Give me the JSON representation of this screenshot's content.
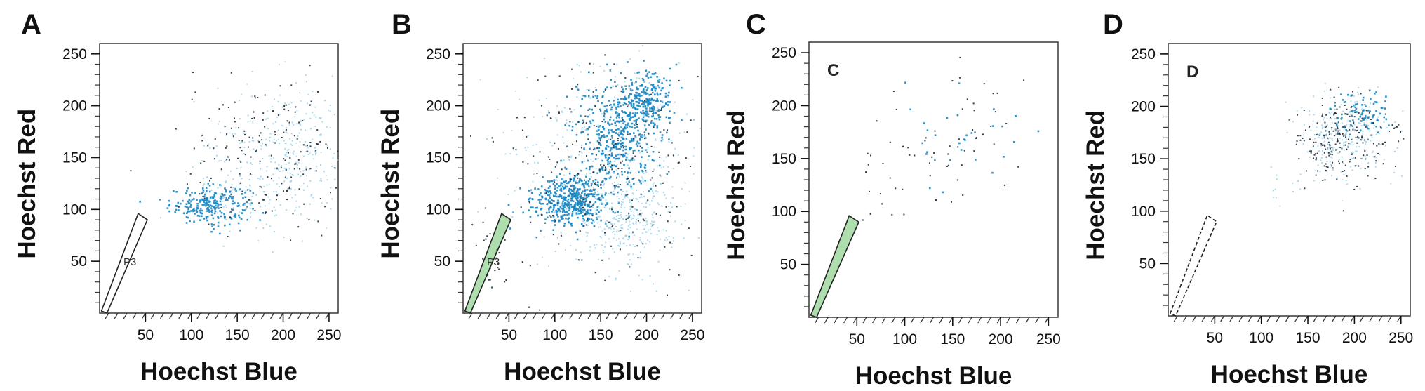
{
  "figure": {
    "x_axis_label": "Hoechst Blue",
    "y_axis_label": "Hoechst Red"
  },
  "chart_data": [
    {
      "type": "scatter",
      "panel_letter": "A",
      "inner_label": "",
      "gate_label": "P3",
      "gate_filled": false,
      "xlim": [
        0,
        260
      ],
      "ylim": [
        0,
        260
      ],
      "x_ticks": [
        50,
        100,
        150,
        200,
        250
      ],
      "y_ticks": [
        50,
        100,
        150,
        200,
        250
      ],
      "xlabel": "Hoechst Blue",
      "ylabel": "Hoechst Red",
      "colors": {
        "dense": "#1a86c2",
        "light": "#8fcde8",
        "dark": "#1c2b38",
        "gate_fill": "#6cc26c"
      },
      "clusters": [
        {
          "cx": 120,
          "cy": 105,
          "sx": 22,
          "sy": 9,
          "count": 240,
          "tone": "dense"
        },
        {
          "cx": 175,
          "cy": 128,
          "sx": 38,
          "sy": 28,
          "count": 220,
          "tone": "light"
        },
        {
          "cx": 215,
          "cy": 175,
          "sx": 30,
          "sy": 32,
          "count": 170,
          "tone": "light"
        },
        {
          "cx": 185,
          "cy": 150,
          "sx": 48,
          "sy": 38,
          "count": 190,
          "tone": "dark"
        }
      ]
    },
    {
      "type": "scatter",
      "panel_letter": "B",
      "inner_label": "",
      "gate_label": "P3",
      "gate_filled": true,
      "xlim": [
        0,
        260
      ],
      "ylim": [
        0,
        260
      ],
      "x_ticks": [
        50,
        100,
        150,
        200,
        250
      ],
      "y_ticks": [
        50,
        100,
        150,
        200,
        250
      ],
      "xlabel": "Hoechst Blue",
      "ylabel": "Hoechst Red",
      "colors": {
        "dense": "#1a86c2",
        "light": "#8fcde8",
        "dark": "#1c2b38",
        "gate_fill": "#6cc26c"
      },
      "clusters": [
        {
          "cx": 115,
          "cy": 110,
          "sx": 20,
          "sy": 12,
          "count": 480,
          "tone": "dense"
        },
        {
          "cx": 165,
          "cy": 170,
          "sx": 22,
          "sy": 26,
          "count": 420,
          "tone": "dense"
        },
        {
          "cx": 200,
          "cy": 205,
          "sx": 16,
          "sy": 14,
          "count": 240,
          "tone": "dense"
        },
        {
          "cx": 175,
          "cy": 90,
          "sx": 24,
          "sy": 22,
          "count": 260,
          "tone": "light"
        },
        {
          "cx": 160,
          "cy": 150,
          "sx": 55,
          "sy": 50,
          "count": 360,
          "tone": "light"
        },
        {
          "cx": 160,
          "cy": 150,
          "sx": 55,
          "sy": 50,
          "count": 260,
          "tone": "dark"
        },
        {
          "cx": 30,
          "cy": 55,
          "sx": 8,
          "sy": 22,
          "count": 25,
          "tone": "dark"
        }
      ]
    },
    {
      "type": "scatter",
      "panel_letter": "C",
      "inner_label": "C",
      "gate_label": "",
      "gate_filled": true,
      "xlim": [
        0,
        260
      ],
      "ylim": [
        0,
        260
      ],
      "x_ticks": [
        50,
        100,
        150,
        200,
        250
      ],
      "y_ticks": [
        50,
        100,
        150,
        200,
        250
      ],
      "xlabel": "Hoechst Blue",
      "ylabel": "Hoechst Red",
      "colors": {
        "dense": "#1a86c2",
        "light": "#8fcde8",
        "dark": "#1c2b38",
        "gate_fill": "#6cc26c"
      },
      "clusters": [
        {
          "cx": 160,
          "cy": 175,
          "sx": 50,
          "sy": 35,
          "count": 55,
          "tone": "dark"
        },
        {
          "cx": 150,
          "cy": 170,
          "sx": 40,
          "sy": 30,
          "count": 30,
          "tone": "dense"
        },
        {
          "cx": 70,
          "cy": 110,
          "sx": 20,
          "sy": 20,
          "count": 12,
          "tone": "dark"
        }
      ]
    },
    {
      "type": "scatter",
      "panel_letter": "D",
      "inner_label": "D",
      "gate_label": "",
      "gate_filled": false,
      "xlim": [
        0,
        260
      ],
      "ylim": [
        0,
        260
      ],
      "x_ticks": [
        50,
        100,
        150,
        200,
        250
      ],
      "y_ticks": [
        50,
        100,
        150,
        200,
        250
      ],
      "xlabel": "Hoechst Blue",
      "ylabel": "Hoechst Red",
      "colors": {
        "dense": "#1a86c2",
        "light": "#8fcde8",
        "dark": "#1c2b38",
        "gate_fill": "#6cc26c"
      },
      "clusters": [
        {
          "cx": 185,
          "cy": 168,
          "sx": 24,
          "sy": 20,
          "count": 230,
          "tone": "dark"
        },
        {
          "cx": 190,
          "cy": 170,
          "sx": 26,
          "sy": 22,
          "count": 230,
          "tone": "light"
        },
        {
          "cx": 205,
          "cy": 195,
          "sx": 14,
          "sy": 10,
          "count": 80,
          "tone": "dense"
        },
        {
          "cx": 120,
          "cy": 120,
          "sx": 15,
          "sy": 12,
          "count": 10,
          "tone": "light"
        }
      ]
    }
  ]
}
